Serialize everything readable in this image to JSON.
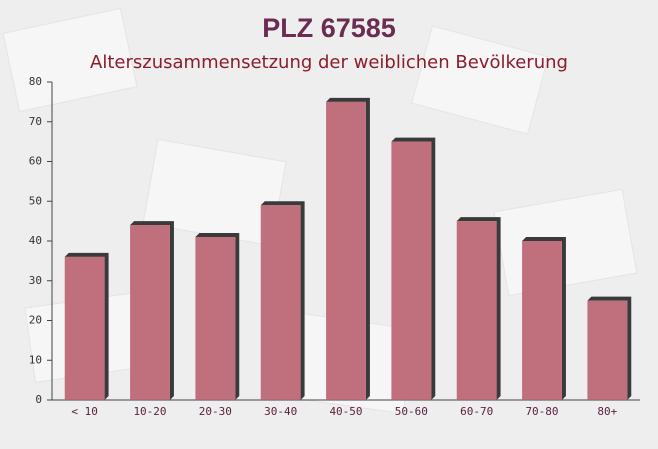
{
  "chart_data": {
    "type": "bar",
    "title": "PLZ 67585",
    "subtitle": "Alterszusammensetzung der weiblichen Bevölkerung",
    "categories": [
      "< 10",
      "10-20",
      "20-30",
      "30-40",
      "40-50",
      "50-60",
      "60-70",
      "70-80",
      "80+"
    ],
    "values": [
      36,
      44,
      41,
      49,
      75,
      65,
      45,
      40,
      25
    ],
    "color": "#b9626f",
    "ylim": [
      0,
      80
    ],
    "yticks": [
      0,
      10,
      20,
      30,
      40,
      50,
      60,
      70,
      80
    ],
    "grid": false
  }
}
